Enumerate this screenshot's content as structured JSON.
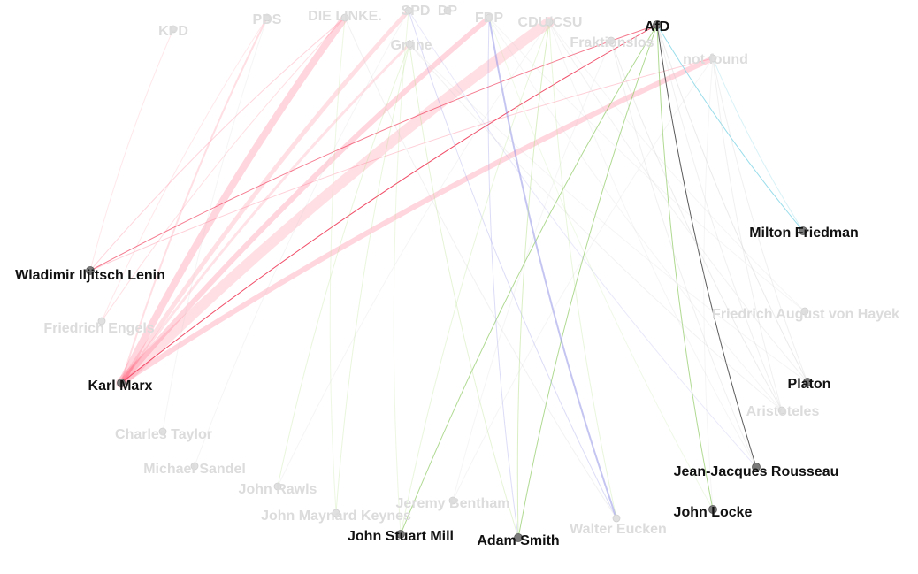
{
  "colors": {
    "background": "#ffffff",
    "label_active": "#111111",
    "label_faded": "#dcdcdc",
    "node_active": "#7a7a7a",
    "node_faded": "#e0e0e0",
    "edge_linke": "#ff5d7a",
    "edge_afd": "#ee2244",
    "edge_spd": "#f7a5b5",
    "edge_gruene": "#a4d66a",
    "edge_fdp": "#8c8ce6",
    "edge_cdu": "#b6e08a",
    "edge_cyan": "#7fd4e6",
    "edge_black": "#333333"
  },
  "nodes": [
    {
      "id": "kpd",
      "label": "KPD",
      "active": false
    },
    {
      "id": "pds",
      "label": "PDS",
      "active": false
    },
    {
      "id": "linke",
      "label": "DIE LINKE.",
      "active": false
    },
    {
      "id": "spd",
      "label": "SPD",
      "active": false
    },
    {
      "id": "dp",
      "label": "DP",
      "active": false
    },
    {
      "id": "fdp",
      "label": "FDP",
      "active": false
    },
    {
      "id": "cdu",
      "label": "CDU/CSU",
      "active": false
    },
    {
      "id": "gruene",
      "label": "Grüne",
      "active": false
    },
    {
      "id": "fraktionslos",
      "label": "Fraktionslos",
      "active": false
    },
    {
      "id": "afd",
      "label": "AfD",
      "active": true
    },
    {
      "id": "notfound",
      "label": "not found",
      "active": false
    },
    {
      "id": "friedman",
      "label": "Milton Friedman",
      "active": true
    },
    {
      "id": "lenin",
      "label": "Wladimir Iljitsch Lenin",
      "active": true
    },
    {
      "id": "engels",
      "label": "Friedrich Engels",
      "active": false
    },
    {
      "id": "hayek",
      "label": "Friedrich August von Hayek",
      "active": false
    },
    {
      "id": "marx",
      "label": "Karl Marx",
      "active": true
    },
    {
      "id": "platon",
      "label": "Platon",
      "active": true
    },
    {
      "id": "aristoteles",
      "label": "Aristoteles",
      "active": false
    },
    {
      "id": "taylor",
      "label": "Charles Taylor",
      "active": false
    },
    {
      "id": "rousseau",
      "label": "Jean-Jacques Rousseau",
      "active": true
    },
    {
      "id": "sandel",
      "label": "Michael Sandel",
      "active": false
    },
    {
      "id": "rawls",
      "label": "John Rawls",
      "active": false
    },
    {
      "id": "bentham",
      "label": "Jeremy Bentham",
      "active": false
    },
    {
      "id": "keynes",
      "label": "John Maynard Keynes",
      "active": false
    },
    {
      "id": "locke",
      "label": "John Locke",
      "active": true
    },
    {
      "id": "eucken",
      "label": "Walter Eucken",
      "active": false
    },
    {
      "id": "mill",
      "label": "John Stuart Mill",
      "active": true
    },
    {
      "id": "smith",
      "label": "Adam Smith",
      "active": true
    }
  ],
  "edges": [
    {
      "source": "linke",
      "target": "marx",
      "color": "#ff5d7a",
      "weight": 8,
      "opacity": 0.25
    },
    {
      "source": "spd",
      "target": "marx",
      "color": "#ff5d7a",
      "weight": 5,
      "opacity": 0.2
    },
    {
      "source": "fdp",
      "target": "marx",
      "color": "#ff5d7a",
      "weight": 6,
      "opacity": 0.25
    },
    {
      "source": "cdu",
      "target": "marx",
      "color": "#ff5d7a",
      "weight": 12,
      "opacity": 0.2
    },
    {
      "source": "afd",
      "target": "marx",
      "color": "#ee2244",
      "weight": 1,
      "opacity": 0.8
    },
    {
      "source": "notfound",
      "target": "marx",
      "color": "#ff5d7a",
      "weight": 6,
      "opacity": 0.25
    },
    {
      "source": "pds",
      "target": "marx",
      "color": "#ff5d7a",
      "weight": 2,
      "opacity": 0.2
    },
    {
      "source": "gruene",
      "target": "marx",
      "color": "#ff5d7a",
      "weight": 3,
      "opacity": 0.18
    },
    {
      "source": "afd",
      "target": "lenin",
      "color": "#ee2244",
      "weight": 1,
      "opacity": 0.6
    },
    {
      "source": "notfound",
      "target": "lenin",
      "color": "#ff5d7a",
      "weight": 1,
      "opacity": 0.3
    },
    {
      "source": "linke",
      "target": "lenin",
      "color": "#ff5d7a",
      "weight": 1,
      "opacity": 0.25
    },
    {
      "source": "kpd",
      "target": "lenin",
      "color": "#ff5d7a",
      "weight": 1,
      "opacity": 0.15
    },
    {
      "source": "linke",
      "target": "engels",
      "color": "#ff5d7a",
      "weight": 1,
      "opacity": 0.2
    },
    {
      "source": "pds",
      "target": "engels",
      "color": "#ff5d7a",
      "weight": 1,
      "opacity": 0.15
    },
    {
      "source": "afd",
      "target": "friedman",
      "color": "#7fd4e6",
      "weight": 1,
      "opacity": 0.8
    },
    {
      "source": "afd",
      "target": "rousseau",
      "color": "#333333",
      "weight": 1,
      "opacity": 0.8
    },
    {
      "source": "afd",
      "target": "locke",
      "color": "#7bc24a",
      "weight": 1,
      "opacity": 0.6
    },
    {
      "source": "afd",
      "target": "smith",
      "color": "#7bc24a",
      "weight": 1,
      "opacity": 0.6
    },
    {
      "source": "afd",
      "target": "mill",
      "color": "#7bc24a",
      "weight": 1,
      "opacity": 0.6
    },
    {
      "source": "afd",
      "target": "platon",
      "color": "#cccccc",
      "weight": 1,
      "opacity": 0.4
    },
    {
      "source": "fdp",
      "target": "eucken",
      "color": "#8c8ce6",
      "weight": 2,
      "opacity": 0.5
    },
    {
      "source": "fdp",
      "target": "smith",
      "color": "#8c8ce6",
      "weight": 1,
      "opacity": 0.3
    },
    {
      "source": "spd",
      "target": "eucken",
      "color": "#8c8ce6",
      "weight": 1,
      "opacity": 0.3
    },
    {
      "source": "spd",
      "target": "rousseau",
      "color": "#8c8ce6",
      "weight": 1,
      "opacity": 0.2
    },
    {
      "source": "cdu",
      "target": "smith",
      "color": "#b6e08a",
      "weight": 1,
      "opacity": 0.5
    },
    {
      "source": "cdu",
      "target": "mill",
      "color": "#b6e08a",
      "weight": 1,
      "opacity": 0.3
    },
    {
      "source": "cdu",
      "target": "eucken",
      "color": "#b6e08a",
      "weight": 1,
      "opacity": 0.3
    },
    {
      "source": "gruene",
      "target": "smith",
      "color": "#b6e08a",
      "weight": 1,
      "opacity": 0.35
    },
    {
      "source": "gruene",
      "target": "rawls",
      "color": "#b6e08a",
      "weight": 1,
      "opacity": 0.3
    },
    {
      "source": "gruene",
      "target": "keynes",
      "color": "#b6e08a",
      "weight": 1,
      "opacity": 0.3
    },
    {
      "source": "linke",
      "target": "keynes",
      "color": "#b6e08a",
      "weight": 1,
      "opacity": 0.25
    },
    {
      "source": "spd",
      "target": "mill",
      "color": "#b6e08a",
      "weight": 1,
      "opacity": 0.25
    },
    {
      "source": "fdp",
      "target": "locke",
      "color": "#b6e08a",
      "weight": 1,
      "opacity": 0.2
    },
    {
      "source": "fraktionslos",
      "target": "aristoteles",
      "color": "#cccccc",
      "weight": 1,
      "opacity": 0.35
    },
    {
      "source": "notfound",
      "target": "platon",
      "color": "#cccccc",
      "weight": 1,
      "opacity": 0.3
    },
    {
      "source": "notfound",
      "target": "aristoteles",
      "color": "#cccccc",
      "weight": 1,
      "opacity": 0.3
    },
    {
      "source": "notfound",
      "target": "friedman",
      "color": "#7fd4e6",
      "weight": 1,
      "opacity": 0.3
    },
    {
      "source": "fraktionslos",
      "target": "rousseau",
      "color": "#cccccc",
      "weight": 1,
      "opacity": 0.3
    },
    {
      "source": "gruene",
      "target": "aristoteles",
      "color": "#cccccc",
      "weight": 1,
      "opacity": 0.25
    },
    {
      "source": "cdu",
      "target": "platon",
      "color": "#cccccc",
      "weight": 1,
      "opacity": 0.25
    },
    {
      "source": "linke",
      "target": "eucken",
      "color": "#cccccc",
      "weight": 1,
      "opacity": 0.25
    },
    {
      "source": "pds",
      "target": "taylor",
      "color": "#cccccc",
      "weight": 1,
      "opacity": 0.2
    },
    {
      "source": "notfound",
      "target": "locke",
      "color": "#cccccc",
      "weight": 1,
      "opacity": 0.2
    },
    {
      "source": "notfound",
      "target": "bentham",
      "color": "#cccccc",
      "weight": 1,
      "opacity": 0.2
    },
    {
      "source": "cdu",
      "target": "hayek",
      "color": "#cccccc",
      "weight": 1,
      "opacity": 0.2
    },
    {
      "source": "fdp",
      "target": "hayek",
      "color": "#cccccc",
      "weight": 1,
      "opacity": 0.2
    },
    {
      "source": "fdp",
      "target": "aristoteles",
      "color": "#cccccc",
      "weight": 1,
      "opacity": 0.2
    },
    {
      "source": "spd",
      "target": "sandel",
      "color": "#cccccc",
      "weight": 1,
      "opacity": 0.2
    },
    {
      "source": "cdu",
      "target": "rawls",
      "color": "#cccccc",
      "weight": 1,
      "opacity": 0.2
    },
    {
      "source": "fraktionslos",
      "target": "bentham",
      "color": "#cccccc",
      "weight": 1,
      "opacity": 0.2
    },
    {
      "source": "afd",
      "target": "aristoteles",
      "color": "#cccccc",
      "weight": 1,
      "opacity": 0.3
    },
    {
      "source": "cdu",
      "target": "rousseau",
      "color": "#cccccc",
      "weight": 1,
      "opacity": 0.2
    },
    {
      "source": "gruene",
      "target": "platon",
      "color": "#cccccc",
      "weight": 1,
      "opacity": 0.2
    }
  ]
}
